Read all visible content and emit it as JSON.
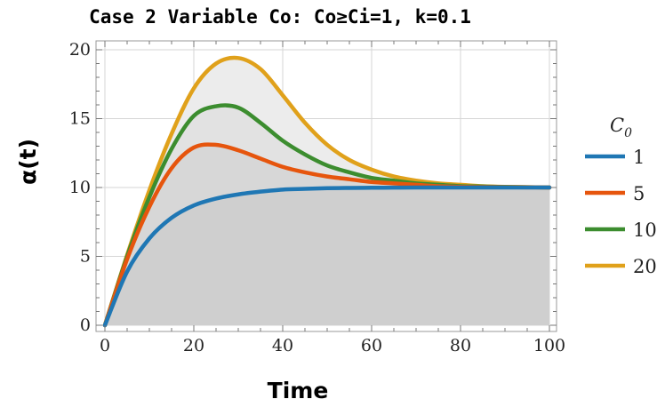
{
  "chart_data": {
    "type": "line",
    "title": "Case 2 Variable Co: Co≥Ci=1, k=0.1",
    "xlabel": "Time",
    "ylabel": "α(t)",
    "xlim": [
      0,
      100
    ],
    "ylim": [
      0,
      20
    ],
    "x_ticks": [
      "0",
      "20",
      "40",
      "60",
      "80",
      "100"
    ],
    "y_ticks": [
      "0",
      "5",
      "10",
      "15",
      "20"
    ],
    "grid": true,
    "filled_area": true,
    "legend": {
      "title": "C",
      "title_subscript": "0",
      "placement": "right"
    },
    "x": [
      0,
      5,
      10,
      15,
      20,
      25,
      30,
      35,
      40,
      45,
      50,
      55,
      60,
      65,
      70,
      75,
      80,
      85,
      90,
      95,
      100
    ],
    "series": [
      {
        "name": "1",
        "color": "#1f77b4",
        "values": [
          0,
          3.9,
          6.3,
          7.8,
          8.7,
          9.2,
          9.5,
          9.7,
          9.85,
          9.9,
          9.95,
          9.97,
          9.98,
          9.99,
          10,
          10,
          10,
          10,
          10,
          10,
          10
        ]
      },
      {
        "name": "5",
        "color": "#e6550d",
        "values": [
          0,
          4.8,
          8.6,
          11.4,
          12.9,
          13.1,
          12.7,
          12.1,
          11.5,
          11.1,
          10.8,
          10.6,
          10.4,
          10.3,
          10.2,
          10.1,
          10.05,
          10.03,
          10.02,
          10.01,
          10
        ]
      },
      {
        "name": "10",
        "color": "#3c8d2f",
        "values": [
          0,
          5.0,
          9.3,
          12.8,
          15.2,
          15.9,
          15.8,
          14.7,
          13.4,
          12.4,
          11.6,
          11.1,
          10.7,
          10.5,
          10.3,
          10.2,
          10.1,
          10.07,
          10.04,
          10.02,
          10
        ]
      },
      {
        "name": "20",
        "color": "#e0a11b",
        "values": [
          0,
          5.1,
          9.8,
          13.9,
          17.2,
          19.0,
          19.4,
          18.6,
          16.7,
          14.7,
          13.1,
          12.0,
          11.3,
          10.8,
          10.5,
          10.3,
          10.2,
          10.1,
          10.05,
          10.03,
          10
        ]
      }
    ]
  }
}
